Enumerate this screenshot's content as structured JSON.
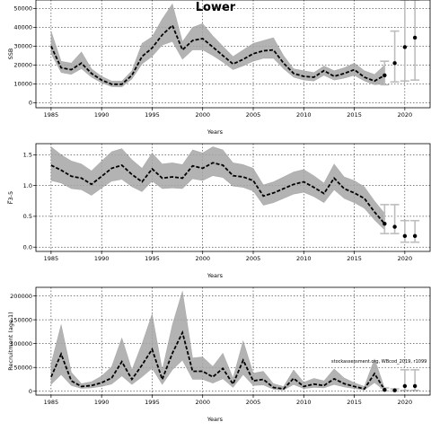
{
  "title": "Lower",
  "annotation": "stockassessment.org, WBcod_2019, r1099",
  "chart_data": [
    {
      "type": "area",
      "name": "ssb",
      "ylabel": "SSB",
      "xlabel": "Years",
      "xlim": [
        1983.5,
        2022.5
      ],
      "ylim": [
        -2700,
        54500
      ],
      "xticks": [
        1985,
        1990,
        1995,
        2000,
        2005,
        2010,
        2015,
        2020
      ],
      "yticks": [
        0,
        10000,
        20000,
        30000,
        40000,
        50000
      ],
      "ytick_labels": [
        "0",
        "10000",
        "20000",
        "30000",
        "40000",
        "50000"
      ],
      "grid": true,
      "x": [
        1985,
        1986,
        1987,
        1988,
        1989,
        1990,
        1991,
        1992,
        1993,
        1994,
        1995,
        1996,
        1997,
        1998,
        1999,
        2000,
        2001,
        2002,
        2003,
        2004,
        2005,
        2006,
        2007,
        2008,
        2009,
        2010,
        2011,
        2012,
        2013,
        2014,
        2015,
        2016,
        2017,
        2018
      ],
      "median": [
        30000,
        18500,
        17500,
        21000,
        15500,
        12000,
        9800,
        9800,
        14500,
        24500,
        29000,
        36000,
        41000,
        28000,
        33000,
        34000,
        29500,
        25000,
        20500,
        23000,
        26000,
        27500,
        28000,
        21000,
        15500,
        14000,
        13500,
        17000,
        14000,
        15500,
        17500,
        13500,
        11500,
        14500
      ],
      "lower": [
        26000,
        16000,
        15000,
        18000,
        13500,
        10500,
        8500,
        8300,
        12500,
        20500,
        24500,
        30500,
        32500,
        23000,
        28000,
        28000,
        25000,
        21500,
        17500,
        19500,
        22000,
        23500,
        23500,
        18000,
        13500,
        12000,
        11500,
        14500,
        12000,
        13000,
        14500,
        11500,
        9500,
        10000
      ],
      "upper": [
        38000,
        22000,
        21000,
        27000,
        18000,
        14000,
        11500,
        11500,
        17000,
        31500,
        35000,
        44500,
        52500,
        32500,
        40000,
        42000,
        35500,
        30000,
        24500,
        28000,
        31500,
        33000,
        34500,
        25000,
        18000,
        17000,
        16000,
        19500,
        17000,
        18500,
        21000,
        17000,
        15000,
        20000
      ],
      "projection": [
        {
          "x": 2018,
          "median": 14500,
          "lower": 9500,
          "upper": 22000
        },
        {
          "x": 2019,
          "median": 21000,
          "lower": 11000,
          "upper": 38000
        },
        {
          "x": 2020,
          "median": 29500,
          "lower": 11500,
          "upper": 54500
        },
        {
          "x": 2021,
          "median": 34500,
          "lower": 12000,
          "upper": 54500
        }
      ]
    },
    {
      "type": "area",
      "name": "fbar",
      "ylabel": "F̅3-5",
      "xlabel": "Years",
      "xlim": [
        1983.5,
        2022.5
      ],
      "ylim": [
        -0.07,
        1.68
      ],
      "xticks": [
        1985,
        1990,
        1995,
        2000,
        2005,
        2010,
        2015,
        2020
      ],
      "yticks": [
        0,
        0.5,
        1,
        1.5
      ],
      "ytick_labels": [
        "0.0",
        "0.5",
        "1.0",
        "1.5"
      ],
      "grid": true,
      "x": [
        1985,
        1986,
        1987,
        1988,
        1989,
        1990,
        1991,
        1992,
        1993,
        1994,
        1995,
        1996,
        1997,
        1998,
        1999,
        2000,
        2001,
        2002,
        2003,
        2004,
        2005,
        2006,
        2007,
        2008,
        2009,
        2010,
        2011,
        2012,
        2013,
        2014,
        2015,
        2016,
        2017,
        2018
      ],
      "median": [
        1.33,
        1.25,
        1.15,
        1.12,
        1.02,
        1.15,
        1.28,
        1.33,
        1.18,
        1.06,
        1.27,
        1.12,
        1.14,
        1.12,
        1.32,
        1.28,
        1.37,
        1.33,
        1.16,
        1.14,
        1.08,
        0.83,
        0.88,
        0.95,
        1.02,
        1.06,
        0.97,
        0.87,
        1.12,
        0.95,
        0.88,
        0.79,
        0.57,
        0.38
      ],
      "lower": [
        1.08,
        1.04,
        0.95,
        0.93,
        0.84,
        0.96,
        1.07,
        1.1,
        0.98,
        0.9,
        1.07,
        0.95,
        0.96,
        0.95,
        1.11,
        1.08,
        1.16,
        1.13,
        0.99,
        0.97,
        0.91,
        0.68,
        0.72,
        0.79,
        0.86,
        0.89,
        0.82,
        0.72,
        0.93,
        0.79,
        0.72,
        0.63,
        0.44,
        0.28
      ],
      "upper": [
        1.63,
        1.5,
        1.4,
        1.35,
        1.24,
        1.4,
        1.55,
        1.6,
        1.42,
        1.28,
        1.53,
        1.35,
        1.37,
        1.34,
        1.58,
        1.53,
        1.63,
        1.58,
        1.37,
        1.34,
        1.28,
        1.01,
        1.06,
        1.14,
        1.22,
        1.26,
        1.16,
        1.04,
        1.35,
        1.14,
        1.08,
        0.98,
        0.75,
        0.55
      ],
      "projection": [
        {
          "x": 2018,
          "median": 0.38,
          "lower": 0.22,
          "upper": 0.69
        },
        {
          "x": 2019,
          "median": 0.33,
          "lower": 0.22,
          "upper": 0.69
        },
        {
          "x": 2020,
          "median": 0.18,
          "lower": 0.08,
          "upper": 0.43
        },
        {
          "x": 2021,
          "median": 0.18,
          "lower": 0.08,
          "upper": 0.43
        }
      ]
    },
    {
      "type": "area",
      "name": "recruitment",
      "ylabel": "Recruitment (age 1)",
      "xlabel": "Years",
      "xlim": [
        1983.5,
        2022.5
      ],
      "ylim": [
        -8000,
        218000
      ],
      "xticks": [
        1985,
        1990,
        1995,
        2000,
        2005,
        2010,
        2015,
        2020
      ],
      "yticks": [
        0,
        50000,
        100000,
        150000,
        200000
      ],
      "ytick_labels": [
        "0",
        "50000",
        "100000",
        "150000",
        "200000"
      ],
      "grid": true,
      "x": [
        1985,
        1986,
        1987,
        1988,
        1989,
        1990,
        1991,
        1992,
        1993,
        1994,
        1995,
        1996,
        1997,
        1998,
        1999,
        2000,
        2001,
        2002,
        2003,
        2004,
        2005,
        2006,
        2007,
        2008,
        2009,
        2010,
        2011,
        2012,
        2013,
        2014,
        2015,
        2016,
        2017,
        2018
      ],
      "median": [
        30000,
        78000,
        22000,
        10000,
        12000,
        18000,
        28000,
        62000,
        25000,
        55000,
        88000,
        25000,
        80000,
        123000,
        42000,
        42000,
        30000,
        48000,
        15000,
        65000,
        22000,
        25000,
        8000,
        5000,
        27000,
        10000,
        15000,
        12000,
        26000,
        16000,
        10000,
        5000,
        37000,
        3000
      ],
      "lower": [
        14000,
        35000,
        12000,
        6000,
        7000,
        10000,
        15000,
        32000,
        14000,
        30000,
        48000,
        14000,
        45000,
        65000,
        25000,
        25000,
        17000,
        26000,
        8000,
        35000,
        12000,
        13000,
        4000,
        2500,
        14000,
        5500,
        8000,
        7000,
        14000,
        9000,
        5500,
        2500,
        18000,
        800
      ],
      "upper": [
        58000,
        140000,
        40000,
        16000,
        20000,
        32000,
        52000,
        112000,
        45000,
        100000,
        162000,
        45000,
        140000,
        210000,
        70000,
        72000,
        52000,
        80000,
        28000,
        106000,
        38000,
        42000,
        16000,
        10000,
        45000,
        19000,
        27000,
        22000,
        47000,
        28000,
        18000,
        10000,
        68000,
        7000
      ],
      "projection": [
        {
          "x": 2018,
          "median": 3000,
          "lower": 800,
          "upper": 7000
        },
        {
          "x": 2019,
          "median": 2000,
          "lower": 500,
          "upper": 5000
        },
        {
          "x": 2020,
          "median": 11000,
          "lower": 2000,
          "upper": 45000
        },
        {
          "x": 2021,
          "median": 11000,
          "lower": 2000,
          "upper": 45000
        }
      ]
    }
  ]
}
